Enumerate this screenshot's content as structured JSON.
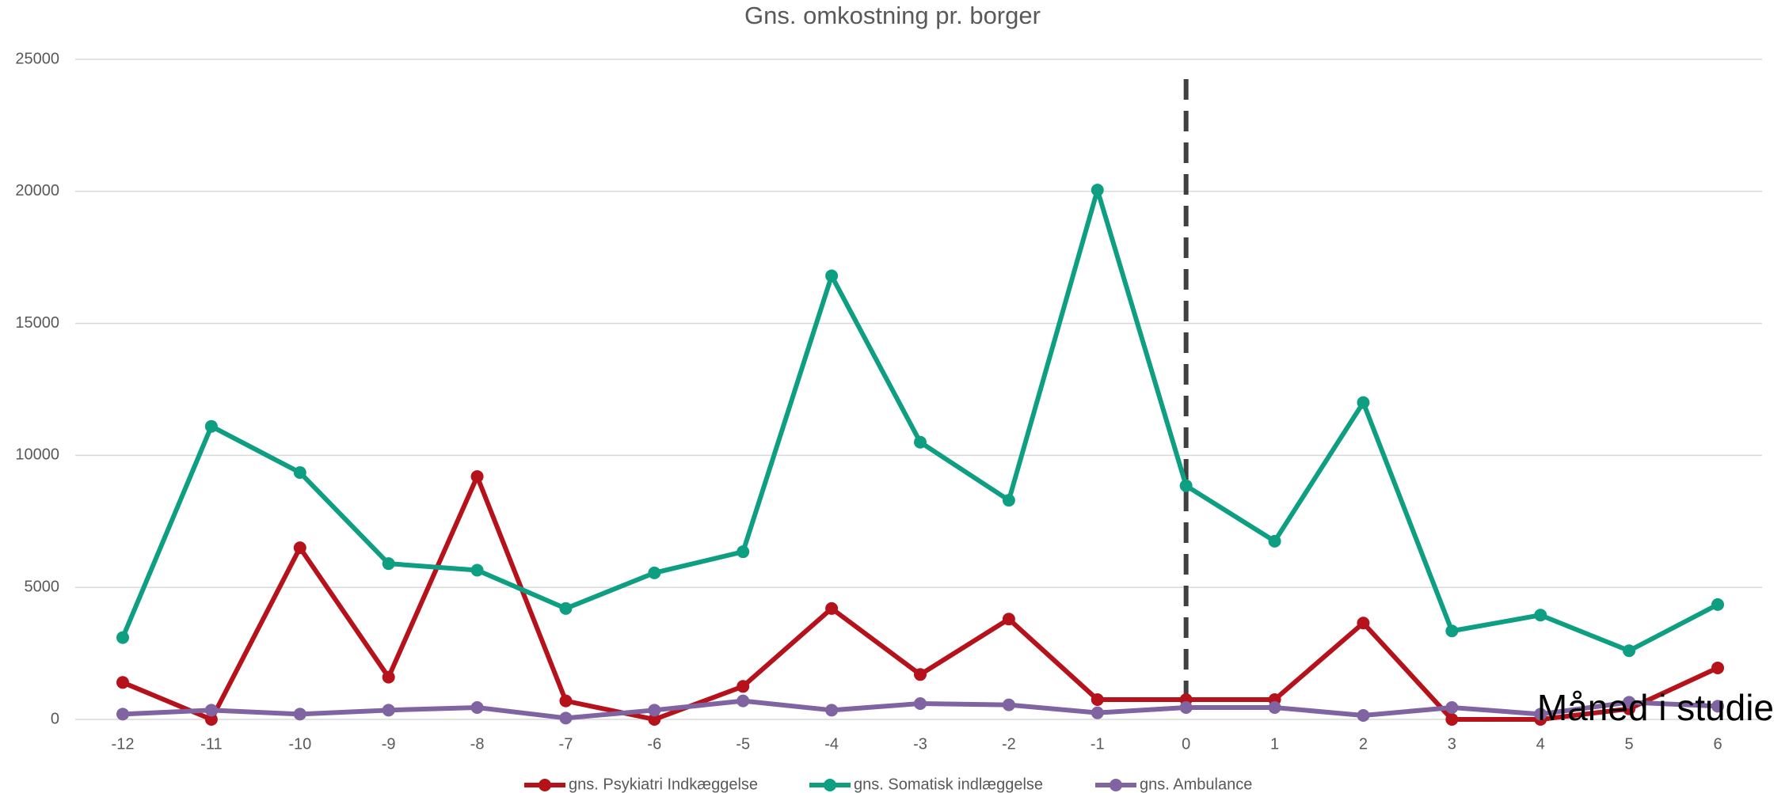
{
  "chart_data": {
    "type": "line",
    "title": "Gns. omkostning pr. borger",
    "x_label": "Måned i studie",
    "categories": [
      "-12",
      "-11",
      "-10",
      "-9",
      "-8",
      "-7",
      "-6",
      "-5",
      "-4",
      "-3",
      "-2",
      "-1",
      "0",
      "1",
      "2",
      "3",
      "4",
      "5",
      "6"
    ],
    "series": [
      {
        "name": "gns. Psykiatri Indkæggelse",
        "color": "#b5121b",
        "values": [
          1400,
          0,
          6500,
          1600,
          9200,
          700,
          0,
          1250,
          4200,
          1700,
          3800,
          750,
          750,
          750,
          3650,
          0,
          0,
          400,
          1950
        ]
      },
      {
        "name": "gns. Somatisk indlæggelse",
        "color": "#0e9e82",
        "values": [
          3100,
          11100,
          9350,
          5900,
          5650,
          4200,
          5550,
          6350,
          16800,
          10500,
          8300,
          20050,
          8850,
          6750,
          12000,
          3350,
          3950,
          2600,
          4350
        ]
      },
      {
        "name": "gns. Ambulance",
        "color": "#8064a2",
        "values": [
          200,
          350,
          200,
          350,
          450,
          50,
          350,
          700,
          350,
          600,
          550,
          250,
          450,
          450,
          150,
          450,
          200,
          650,
          500
        ]
      }
    ],
    "ylim": [
      0,
      25000
    ],
    "yticks": [
      0,
      5000,
      10000,
      15000,
      20000,
      25000
    ],
    "grid": true,
    "legend": "bottom",
    "vline_category": "0"
  }
}
